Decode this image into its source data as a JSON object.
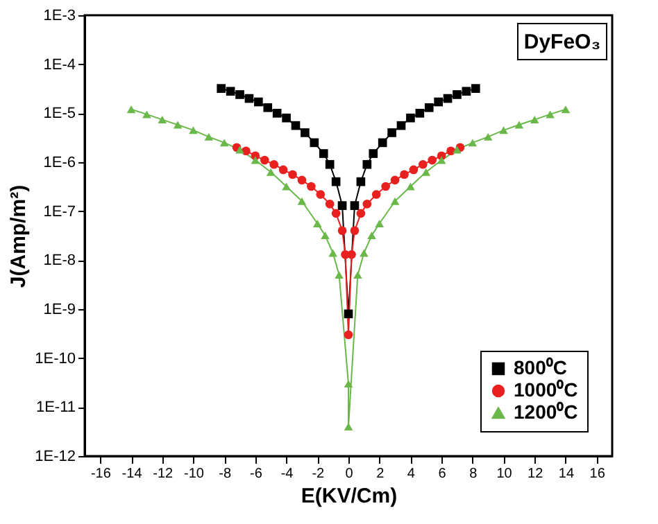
{
  "chart_data": {
    "type": "line",
    "xlabel": "E(KV/Cm)",
    "ylabel": "J(Amp/m²)",
    "annotations": [
      "DyFeO₃"
    ],
    "xlim": [
      -17,
      17
    ],
    "xticks": [
      -16,
      -14,
      -12,
      -10,
      -8,
      -6,
      -4,
      -2,
      0,
      2,
      4,
      6,
      8,
      10,
      12,
      14,
      16
    ],
    "ylim": [
      1e-12,
      0.001
    ],
    "log": true,
    "yticks": [
      {
        "value": 1e-12,
        "label": "1E-12"
      },
      {
        "value": 1e-11,
        "label": "1E-11"
      },
      {
        "value": 1e-10,
        "label": "1E-10"
      },
      {
        "value": 1e-09,
        "label": "1E-9"
      },
      {
        "value": 1e-08,
        "label": "1E-8"
      },
      {
        "value": 1e-07,
        "label": "1E-7"
      },
      {
        "value": 1e-06,
        "label": "1E-6"
      },
      {
        "value": 1e-05,
        "label": "1E-5"
      },
      {
        "value": 0.0001,
        "label": "1E-4"
      },
      {
        "value": 0.001,
        "label": "1E-3"
      }
    ],
    "grid": false,
    "legend": "bottom right",
    "line_style": "solid",
    "series": [
      {
        "name": "800⁰C",
        "color": "#000000",
        "marker": "square",
        "x": [
          -8.2,
          -7.6,
          -7,
          -6.4,
          -5.8,
          -5.2,
          -4.6,
          -4,
          -3.4,
          -2.8,
          -2.2,
          -1.6,
          -1.2,
          -0.8,
          -0.4,
          0,
          0.4,
          0.8,
          1.2,
          1.6,
          2.2,
          2.8,
          3.4,
          4,
          4.6,
          5.2,
          5.8,
          6.4,
          7,
          7.6,
          8.2
        ],
        "values": [
          3.2e-05,
          2.8e-05,
          2.4e-05,
          2e-05,
          1.7e-05,
          1.3e-05,
          1e-05,
          8e-06,
          5.6e-06,
          4e-06,
          2.5e-06,
          1.5e-06,
          9e-07,
          4e-07,
          1.3e-07,
          8e-10,
          1.3e-07,
          4e-07,
          9e-07,
          1.5e-06,
          2.5e-06,
          4e-06,
          5.6e-06,
          8e-06,
          1e-05,
          1.3e-05,
          1.7e-05,
          2e-05,
          2.4e-05,
          2.8e-05,
          3.2e-05
        ]
      },
      {
        "name": "1000⁰C",
        "color": "#e8201f",
        "marker": "circle",
        "x": [
          -7.2,
          -6.6,
          -6,
          -5.4,
          -4.8,
          -4.2,
          -3.6,
          -3,
          -2.4,
          -1.8,
          -1.2,
          -0.8,
          -0.4,
          -0.2,
          0,
          0.2,
          0.4,
          0.8,
          1.2,
          1.8,
          2.4,
          3,
          3.6,
          4.2,
          4.8,
          5.4,
          6,
          6.6,
          7.2
        ],
        "values": [
          2e-06,
          1.7e-06,
          1.35e-06,
          1.1e-06,
          9e-07,
          7e-07,
          5.6e-07,
          4.3e-07,
          3.2e-07,
          2.2e-07,
          1.4e-07,
          9e-08,
          4e-08,
          1.3e-08,
          3e-10,
          1.3e-08,
          4e-08,
          9e-08,
          1.4e-07,
          2.2e-07,
          3.2e-07,
          4.3e-07,
          5.6e-07,
          7e-07,
          9e-07,
          1.1e-06,
          1.35e-06,
          1.7e-06,
          2e-06
        ]
      },
      {
        "name": "1200⁰C",
        "color": "#6ab84a",
        "marker": "triangle",
        "x": [
          -14,
          -13,
          -12,
          -11,
          -10,
          -9,
          -8,
          -7,
          -6,
          -5,
          -4,
          -3,
          -2,
          -1.5,
          -1,
          -0.6,
          0,
          0,
          0.6,
          1,
          1.5,
          2,
          3,
          4,
          5,
          6,
          7,
          8,
          9,
          10,
          11,
          12,
          13,
          14
        ],
        "values": [
          1.2e-05,
          9.5e-06,
          7.4e-06,
          5.8e-06,
          4.5e-06,
          3.3e-06,
          2.5e-06,
          1.8e-06,
          1.1e-06,
          6.3e-07,
          3.2e-07,
          1.6e-07,
          5.6e-08,
          3.2e-08,
          1.4e-08,
          5e-09,
          3e-11,
          4e-12,
          5e-09,
          1.4e-08,
          3.2e-08,
          5.6e-08,
          1.6e-07,
          3.2e-07,
          6.3e-07,
          1.1e-06,
          1.8e-06,
          2.5e-06,
          3.3e-06,
          4.5e-06,
          5.8e-06,
          7.4e-06,
          9.5e-06,
          1.2e-05
        ]
      }
    ]
  }
}
